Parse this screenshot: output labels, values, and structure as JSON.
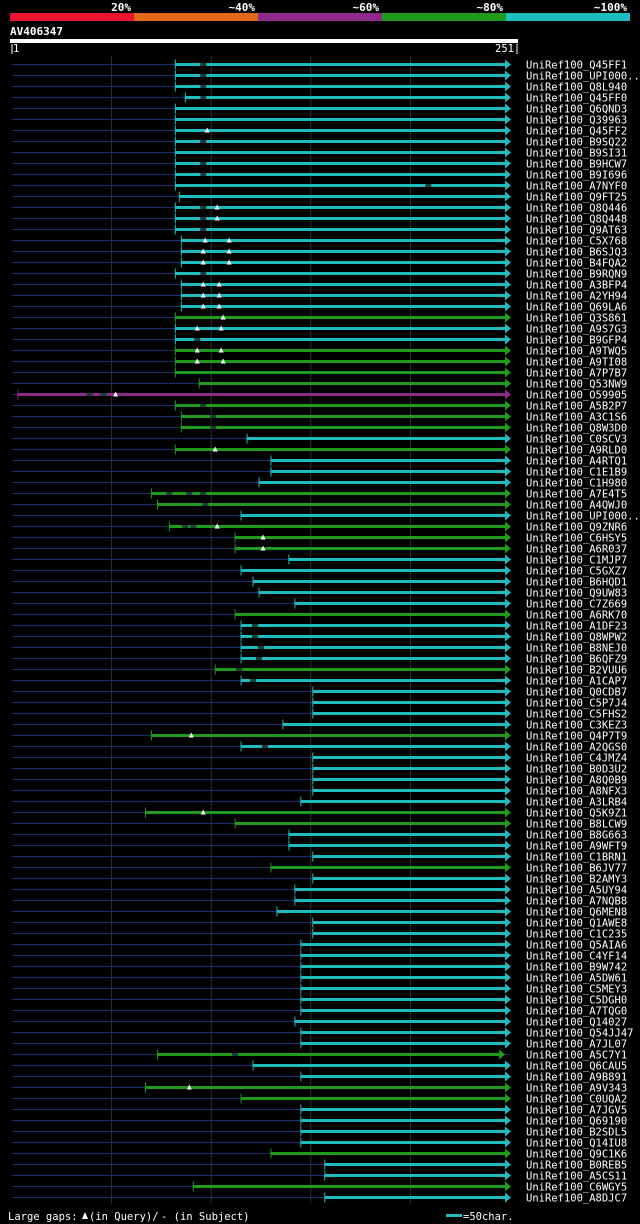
{
  "chart_data": {
    "type": "alignment-overview",
    "title": "AV406347",
    "query_length": 251,
    "axis": {
      "start_label": "1",
      "end_label": "251"
    },
    "identity_legend": [
      {
        "label": "20%",
        "color": "#e8152d"
      },
      {
        "label": "~40%",
        "color": "#e06818"
      },
      {
        "label": "~60%",
        "color": "#8e2a8c"
      },
      {
        "label": "~80%",
        "color": "#1d9c1d"
      },
      {
        "label": "~100%",
        "color": "#1fbcbf"
      }
    ],
    "footer": {
      "gaps_prefix": "Large gaps:",
      "gaps_query": "(in Query)/",
      "gaps_subject": "- (in Subject)",
      "scale_label": "=50char."
    },
    "hits": [
      {
        "name": "UniRef100_Q45FF1",
        "start": 83,
        "end": 251,
        "color": "teal",
        "gaps": [
          97
        ]
      },
      {
        "name": "UniRef100_UPI000..",
        "start": 83,
        "end": 251,
        "color": "teal",
        "gaps": [
          97
        ]
      },
      {
        "name": "UniRef100_Q8L940",
        "start": 83,
        "end": 251,
        "color": "teal",
        "gaps": [
          97
        ]
      },
      {
        "name": "UniRef100_Q45FF0",
        "start": 88,
        "end": 251,
        "color": "teal",
        "gaps": [
          97
        ]
      },
      {
        "name": "UniRef100_Q6QND3",
        "start": 83,
        "end": 251,
        "color": "teal",
        "gaps": []
      },
      {
        "name": "UniRef100_Q39963",
        "start": 83,
        "end": 251,
        "color": "teal",
        "gaps": []
      },
      {
        "name": "UniRef100_Q45FF2",
        "start": 83,
        "end": 251,
        "color": "teal",
        "gaps": [],
        "qgaps": [
          99
        ]
      },
      {
        "name": "UniRef100_B9SQ22",
        "start": 83,
        "end": 251,
        "color": "teal",
        "gaps": [
          97
        ]
      },
      {
        "name": "UniRef100_B9SI31",
        "start": 83,
        "end": 251,
        "color": "teal",
        "gaps": []
      },
      {
        "name": "UniRef100_B9HCW7",
        "start": 83,
        "end": 251,
        "color": "teal",
        "gaps": [
          97
        ]
      },
      {
        "name": "UniRef100_B9I696",
        "start": 83,
        "end": 251,
        "color": "teal",
        "gaps": [
          97
        ]
      },
      {
        "name": "UniRef100_A7NYF0",
        "start": 83,
        "end": 251,
        "color": "teal",
        "gaps": [
          210
        ]
      },
      {
        "name": "UniRef100_Q9FT25",
        "start": 85,
        "end": 251,
        "color": "teal",
        "gaps": []
      },
      {
        "name": "UniRef100_Q8Q446",
        "start": 83,
        "end": 251,
        "color": "teal",
        "gaps": [
          97
        ],
        "qgaps": [
          104
        ]
      },
      {
        "name": "UniRef100_Q8Q448",
        "start": 83,
        "end": 251,
        "color": "teal",
        "gaps": [
          97
        ],
        "qgaps": [
          104
        ]
      },
      {
        "name": "UniRef100_Q9AT63",
        "start": 83,
        "end": 251,
        "color": "teal",
        "gaps": [
          97
        ]
      },
      {
        "name": "UniRef100_C5X768",
        "start": 86,
        "end": 251,
        "color": "teal",
        "gaps": [],
        "qgaps": [
          98,
          110
        ]
      },
      {
        "name": "UniRef100_B6SJQ3",
        "start": 86,
        "end": 251,
        "color": "teal",
        "gaps": [],
        "qgaps": [
          97,
          110
        ]
      },
      {
        "name": "UniRef100_B4FQA2",
        "start": 86,
        "end": 251,
        "color": "teal",
        "gaps": [],
        "qgaps": [
          97,
          110
        ]
      },
      {
        "name": "UniRef100_B9RQN9",
        "start": 83,
        "end": 251,
        "color": "teal",
        "gaps": [
          97
        ]
      },
      {
        "name": "UniRef100_A3BFP4",
        "start": 86,
        "end": 251,
        "color": "teal",
        "gaps": [],
        "qgaps": [
          97,
          105
        ]
      },
      {
        "name": "UniRef100_A2YH94",
        "start": 86,
        "end": 251,
        "color": "teal",
        "gaps": [],
        "qgaps": [
          97,
          105
        ]
      },
      {
        "name": "UniRef100_Q69LA6",
        "start": 86,
        "end": 251,
        "color": "teal",
        "gaps": [],
        "qgaps": [
          97,
          105
        ]
      },
      {
        "name": "UniRef100_Q3S861",
        "start": 83,
        "end": 251,
        "color": "green",
        "gaps": [],
        "qgaps": [
          107
        ]
      },
      {
        "name": "UniRef100_A9S7G3",
        "start": 83,
        "end": 251,
        "color": "teal",
        "gaps": [],
        "qgaps": [
          94,
          106
        ]
      },
      {
        "name": "UniRef100_B9GFP4",
        "start": 83,
        "end": 251,
        "color": "teal",
        "gaps": [
          94
        ]
      },
      {
        "name": "UniRef100_A9TWQ5",
        "start": 83,
        "end": 251,
        "color": "green",
        "gaps": [],
        "qgaps": [
          94,
          106
        ]
      },
      {
        "name": "UniRef100_A9TI08",
        "start": 83,
        "end": 251,
        "color": "green",
        "gaps": [],
        "qgaps": [
          94,
          107
        ]
      },
      {
        "name": "UniRef100_A7P7B7",
        "start": 83,
        "end": 251,
        "color": "green",
        "gaps": []
      },
      {
        "name": "UniRef100_Q53NW9",
        "start": 95,
        "end": 251,
        "color": "green",
        "gaps": []
      },
      {
        "name": "UniRef100_O59905",
        "start": 4,
        "end": 251,
        "color": "purple",
        "gaps": [
          40,
          47
        ],
        "qgaps": [
          53
        ]
      },
      {
        "name": "UniRef100_A5B2P7",
        "start": 83,
        "end": 251,
        "color": "green",
        "gaps": [
          97
        ]
      },
      {
        "name": "UniRef100_A3C1S6",
        "start": 86,
        "end": 251,
        "color": "green",
        "gaps": [
          102
        ]
      },
      {
        "name": "UniRef100_Q8W3D0",
        "start": 86,
        "end": 251,
        "color": "green",
        "gaps": [
          102
        ]
      },
      {
        "name": "UniRef100_C0SCV3",
        "start": 119,
        "end": 251,
        "color": "teal",
        "gaps": []
      },
      {
        "name": "UniRef100_A9RLD0",
        "start": 83,
        "end": 251,
        "color": "green",
        "gaps": [],
        "qgaps": [
          103
        ]
      },
      {
        "name": "UniRef100_A4RTQ1",
        "start": 131,
        "end": 251,
        "color": "teal",
        "gaps": []
      },
      {
        "name": "UniRef100_C1E1B9",
        "start": 131,
        "end": 251,
        "color": "teal",
        "gaps": []
      },
      {
        "name": "UniRef100_C1H980",
        "start": 125,
        "end": 251,
        "color": "teal",
        "gaps": []
      },
      {
        "name": "UniRef100_A7E4T5",
        "start": 71,
        "end": 251,
        "color": "green",
        "gaps": [
          80,
          90,
          97
        ]
      },
      {
        "name": "UniRef100_A4QWJ0",
        "start": 74,
        "end": 251,
        "color": "green",
        "gaps": [
          98
        ]
      },
      {
        "name": "UniRef100_UPI000..",
        "start": 116,
        "end": 251,
        "color": "teal",
        "gaps": []
      },
      {
        "name": "UniRef100_Q9ZNR6",
        "start": 80,
        "end": 251,
        "color": "green",
        "gaps": [
          88,
          92
        ],
        "qgaps": [
          104
        ]
      },
      {
        "name": "UniRef100_C6HSY5",
        "start": 113,
        "end": 251,
        "color": "green",
        "gaps": [],
        "qgaps": [
          127
        ]
      },
      {
        "name": "UniRef100_A6R037",
        "start": 113,
        "end": 251,
        "color": "green",
        "gaps": [],
        "qgaps": [
          127
        ]
      },
      {
        "name": "UniRef100_C1MJP7",
        "start": 140,
        "end": 251,
        "color": "teal",
        "gaps": []
      },
      {
        "name": "UniRef100_C5GXZ7",
        "start": 116,
        "end": 251,
        "color": "teal",
        "gaps": []
      },
      {
        "name": "UniRef100_B6HQD1",
        "start": 122,
        "end": 251,
        "color": "teal",
        "gaps": []
      },
      {
        "name": "UniRef100_Q9UW83",
        "start": 125,
        "end": 251,
        "color": "teal",
        "gaps": []
      },
      {
        "name": "UniRef100_C7Z669",
        "start": 143,
        "end": 251,
        "color": "teal",
        "gaps": []
      },
      {
        "name": "UniRef100_A6RK70",
        "start": 113,
        "end": 251,
        "color": "green",
        "gaps": []
      },
      {
        "name": "UniRef100_A1DF23",
        "start": 116,
        "end": 251,
        "color": "teal",
        "gaps": [
          123
        ]
      },
      {
        "name": "UniRef100_Q8WPW2",
        "start": 116,
        "end": 251,
        "color": "teal",
        "gaps": [
          123
        ]
      },
      {
        "name": "UniRef100_B8NEJ0",
        "start": 116,
        "end": 251,
        "color": "teal",
        "gaps": [
          126
        ]
      },
      {
        "name": "UniRef100_B6QFZ9",
        "start": 116,
        "end": 251,
        "color": "teal",
        "gaps": [
          125
        ]
      },
      {
        "name": "UniRef100_B2VUU6",
        "start": 103,
        "end": 251,
        "color": "green",
        "gaps": [
          115
        ]
      },
      {
        "name": "UniRef100_A1CAP7",
        "start": 116,
        "end": 251,
        "color": "teal",
        "gaps": [
          122
        ]
      },
      {
        "name": "UniRef100_Q0CDB7",
        "start": 152,
        "end": 251,
        "color": "teal",
        "gaps": []
      },
      {
        "name": "UniRef100_C5P7J4",
        "start": 152,
        "end": 251,
        "color": "teal",
        "gaps": []
      },
      {
        "name": "UniRef100_C5FHS2",
        "start": 152,
        "end": 251,
        "color": "teal",
        "gaps": []
      },
      {
        "name": "UniRef100_C3KEZ3",
        "start": 137,
        "end": 251,
        "color": "teal",
        "gaps": []
      },
      {
        "name": "UniRef100_Q4P7T9",
        "start": 71,
        "end": 251,
        "color": "green",
        "gaps": [],
        "qgaps": [
          91
        ]
      },
      {
        "name": "UniRef100_A2QGS0",
        "start": 116,
        "end": 251,
        "color": "teal",
        "gaps": [
          128
        ]
      },
      {
        "name": "UniRef100_C4JMZ4",
        "start": 152,
        "end": 251,
        "color": "teal",
        "gaps": []
      },
      {
        "name": "UniRef100_B0D3U2",
        "start": 152,
        "end": 251,
        "color": "teal",
        "gaps": []
      },
      {
        "name": "UniRef100_A8Q0B9",
        "start": 152,
        "end": 251,
        "color": "teal",
        "gaps": []
      },
      {
        "name": "UniRef100_A8NFX3",
        "start": 152,
        "end": 251,
        "color": "teal",
        "gaps": []
      },
      {
        "name": "UniRef100_A3LRB4",
        "start": 146,
        "end": 251,
        "color": "teal",
        "gaps": []
      },
      {
        "name": "UniRef100_Q5K9Z1",
        "start": 68,
        "end": 251,
        "color": "green",
        "gaps": [],
        "qgaps": [
          97
        ]
      },
      {
        "name": "UniRef100_B8LCW9",
        "start": 113,
        "end": 251,
        "color": "green",
        "gaps": []
      },
      {
        "name": "UniRef100_B8G663",
        "start": 140,
        "end": 251,
        "color": "teal",
        "gaps": []
      },
      {
        "name": "UniRef100_A9WFT9",
        "start": 140,
        "end": 251,
        "color": "teal",
        "gaps": []
      },
      {
        "name": "UniRef100_C1BRN1",
        "start": 152,
        "end": 251,
        "color": "teal",
        "gaps": []
      },
      {
        "name": "UniRef100_B6JV77",
        "start": 131,
        "end": 251,
        "color": "green",
        "gaps": []
      },
      {
        "name": "UniRef100_B2AMY3",
        "start": 152,
        "end": 251,
        "color": "teal",
        "gaps": []
      },
      {
        "name": "UniRef100_A5UY94",
        "start": 143,
        "end": 251,
        "color": "teal",
        "gaps": []
      },
      {
        "name": "UniRef100_A7NQB8",
        "start": 143,
        "end": 251,
        "color": "teal",
        "gaps": []
      },
      {
        "name": "UniRef100_Q6MEN8",
        "start": 134,
        "end": 251,
        "color": "teal",
        "gaps": []
      },
      {
        "name": "UniRef100_Q1AWE8",
        "start": 152,
        "end": 251,
        "color": "teal",
        "gaps": []
      },
      {
        "name": "UniRef100_C1C235",
        "start": 152,
        "end": 251,
        "color": "teal",
        "gaps": []
      },
      {
        "name": "UniRef100_Q5AIA6",
        "start": 146,
        "end": 251,
        "color": "teal",
        "gaps": []
      },
      {
        "name": "UniRef100_C4YF14",
        "start": 146,
        "end": 251,
        "color": "teal",
        "gaps": []
      },
      {
        "name": "UniRef100_B9W742",
        "start": 146,
        "end": 251,
        "color": "teal",
        "gaps": []
      },
      {
        "name": "UniRef100_A5DW61",
        "start": 146,
        "end": 251,
        "color": "teal",
        "gaps": []
      },
      {
        "name": "UniRef100_C5MEY3",
        "start": 146,
        "end": 251,
        "color": "teal",
        "gaps": []
      },
      {
        "name": "UniRef100_C5DGH0",
        "start": 146,
        "end": 251,
        "color": "teal",
        "gaps": []
      },
      {
        "name": "UniRef100_A7TQG0",
        "start": 146,
        "end": 251,
        "color": "teal",
        "gaps": []
      },
      {
        "name": "UniRef100_Q14027",
        "start": 143,
        "end": 251,
        "color": "teal",
        "gaps": []
      },
      {
        "name": "UniRef100_Q54JJ47",
        "start": 146,
        "end": 251,
        "color": "teal",
        "gaps": []
      },
      {
        "name": "UniRef100_A7JL07",
        "start": 146,
        "end": 251,
        "color": "teal",
        "gaps": []
      },
      {
        "name": "UniRef100_A5C7Y1",
        "start": 74,
        "end": 248,
        "color": "green",
        "gaps": [
          113
        ]
      },
      {
        "name": "UniRef100_Q6CAU5",
        "start": 122,
        "end": 251,
        "color": "teal",
        "gaps": []
      },
      {
        "name": "UniRef100_A9B891",
        "start": 146,
        "end": 251,
        "color": "teal",
        "gaps": []
      },
      {
        "name": "UniRef100_A9V343",
        "start": 68,
        "end": 251,
        "color": "green",
        "gaps": [],
        "qgaps": [
          90
        ]
      },
      {
        "name": "UniRef100_C0UQA2",
        "start": 116,
        "end": 251,
        "color": "green",
        "gaps": []
      },
      {
        "name": "UniRef100_A7JGV5",
        "start": 146,
        "end": 251,
        "color": "teal",
        "gaps": []
      },
      {
        "name": "UniRef100_Q69190",
        "start": 146,
        "end": 251,
        "color": "teal",
        "gaps": []
      },
      {
        "name": "UniRef100_B2SDL5",
        "start": 146,
        "end": 251,
        "color": "teal",
        "gaps": []
      },
      {
        "name": "UniRef100_Q14IU8",
        "start": 146,
        "end": 251,
        "color": "teal",
        "gaps": []
      },
      {
        "name": "UniRef100_Q9C1K6",
        "start": 131,
        "end": 251,
        "color": "green",
        "gaps": []
      },
      {
        "name": "UniRef100_B0REB5",
        "start": 158,
        "end": 251,
        "color": "teal",
        "gaps": []
      },
      {
        "name": "UniRef100_A5CS11",
        "start": 158,
        "end": 251,
        "color": "teal",
        "gaps": []
      },
      {
        "name": "UniRef100_C6WGY5",
        "start": 92,
        "end": 251,
        "color": "green",
        "gaps": []
      },
      {
        "name": "UniRef100_A8DJC7",
        "start": 158,
        "end": 251,
        "color": "teal",
        "gaps": []
      }
    ]
  }
}
